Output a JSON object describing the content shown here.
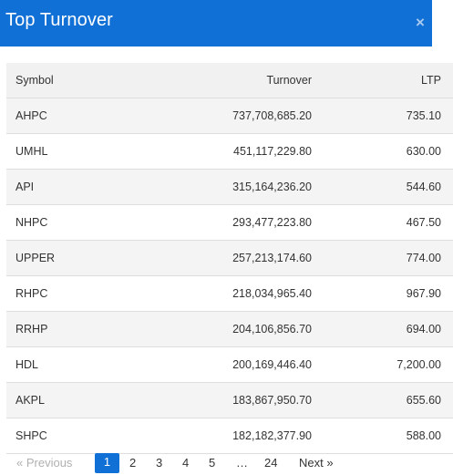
{
  "header": {
    "title": "Top Turnover",
    "close_icon": "×"
  },
  "table": {
    "columns": {
      "symbol": "Symbol",
      "turnover": "Turnover",
      "ltp": "LTP"
    },
    "rows": [
      {
        "symbol": "AHPC",
        "turnover": "737,708,685.20",
        "ltp": "735.10"
      },
      {
        "symbol": "UMHL",
        "turnover": "451,117,229.80",
        "ltp": "630.00"
      },
      {
        "symbol": "API",
        "turnover": "315,164,236.20",
        "ltp": "544.60"
      },
      {
        "symbol": "NHPC",
        "turnover": "293,477,223.80",
        "ltp": "467.50"
      },
      {
        "symbol": "UPPER",
        "turnover": "257,213,174.60",
        "ltp": "774.00"
      },
      {
        "symbol": "RHPC",
        "turnover": "218,034,965.40",
        "ltp": "967.90"
      },
      {
        "symbol": "RRHP",
        "turnover": "204,106,856.70",
        "ltp": "694.00"
      },
      {
        "symbol": "HDL",
        "turnover": "200,169,446.40",
        "ltp": "7,200.00"
      },
      {
        "symbol": "AKPL",
        "turnover": "183,867,950.70",
        "ltp": "655.60"
      },
      {
        "symbol": "SHPC",
        "turnover": "182,182,377.90",
        "ltp": "588.00"
      }
    ]
  },
  "pagination": {
    "previous": "« Previous",
    "pages": [
      "1",
      "2",
      "3",
      "4",
      "5"
    ],
    "ellipsis": "…",
    "last": "24",
    "next": "Next »",
    "current_page": "1"
  },
  "colors": {
    "header": "#1170d6",
    "row_alt": "#f4f4f4",
    "header_row": "#f1f1f1"
  }
}
